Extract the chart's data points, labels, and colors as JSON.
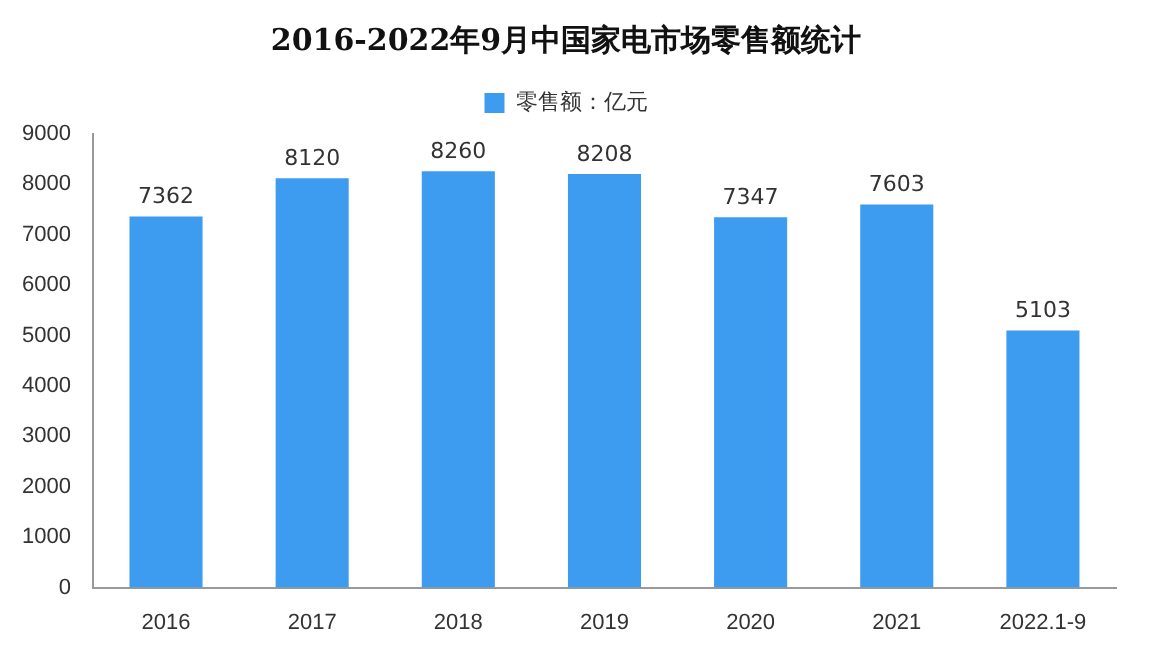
{
  "chart_data": {
    "type": "bar",
    "title": "2016-2022年9月中国家电市场零售额统计",
    "categories": [
      "2016",
      "2017",
      "2018",
      "2019",
      "2020",
      "2021",
      "2022.1-9"
    ],
    "series": [
      {
        "name": "零售额：亿元",
        "color": "#3d9cf0",
        "values": [
          7362,
          8120,
          8260,
          8208,
          7347,
          7603,
          5103
        ]
      }
    ],
    "ylim": [
      0,
      9000
    ],
    "yticks": [
      0,
      1000,
      2000,
      3000,
      4000,
      5000,
      6000,
      7000,
      8000,
      9000
    ],
    "grid": false,
    "legend": "top",
    "data_labels": true
  }
}
